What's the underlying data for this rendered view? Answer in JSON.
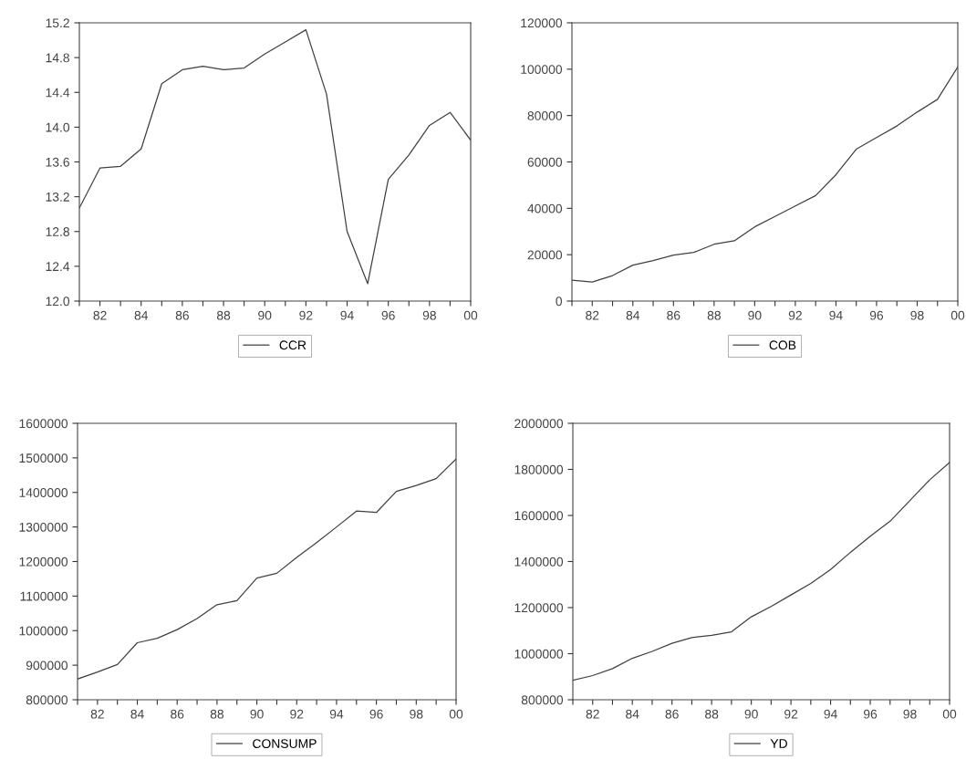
{
  "chart_data": [
    {
      "type": "line",
      "x": [
        1981,
        1982,
        1983,
        1984,
        1985,
        1986,
        1987,
        1988,
        1989,
        1990,
        1991,
        1992,
        1993,
        1994,
        1995,
        1996,
        1997,
        1998,
        1999,
        2000
      ],
      "series": [
        {
          "name": "CCR",
          "color": "#404040",
          "values": [
            13.07,
            13.53,
            13.55,
            13.75,
            14.5,
            14.66,
            14.7,
            14.66,
            14.68,
            14.84,
            14.98,
            15.12,
            14.38,
            12.8,
            12.2,
            13.4,
            13.68,
            14.02,
            14.17,
            13.85
          ]
        }
      ],
      "xlim": [
        1981,
        2000
      ],
      "xticks": [
        {
          "value": 1981,
          "label": null
        },
        {
          "value": 1982,
          "label": "82"
        },
        {
          "value": 1983,
          "label": null
        },
        {
          "value": 1984,
          "label": "84"
        },
        {
          "value": 1985,
          "label": null
        },
        {
          "value": 1986,
          "label": "86"
        },
        {
          "value": 1987,
          "label": null
        },
        {
          "value": 1988,
          "label": "88"
        },
        {
          "value": 1989,
          "label": null
        },
        {
          "value": 1990,
          "label": "90"
        },
        {
          "value": 1991,
          "label": null
        },
        {
          "value": 1992,
          "label": "92"
        },
        {
          "value": 1993,
          "label": null
        },
        {
          "value": 1994,
          "label": "94"
        },
        {
          "value": 1995,
          "label": null
        },
        {
          "value": 1996,
          "label": "96"
        },
        {
          "value": 1997,
          "label": null
        },
        {
          "value": 1998,
          "label": "98"
        },
        {
          "value": 1999,
          "label": null
        },
        {
          "value": 2000,
          "label": "00"
        }
      ],
      "ylim": [
        12.0,
        15.2
      ],
      "yticks": [
        {
          "value": 12,
          "label": "12.0"
        },
        {
          "value": 12.4,
          "label": "12.4"
        },
        {
          "value": 12.8,
          "label": "12.8"
        },
        {
          "value": 13.2,
          "label": "13.2"
        },
        {
          "value": 13.6,
          "label": "13.6"
        },
        {
          "value": 14,
          "label": "14.0"
        },
        {
          "value": 14.4,
          "label": "14.4"
        },
        {
          "value": 14.8,
          "label": "14.8"
        },
        {
          "value": 15.2,
          "label": "15.2"
        }
      ],
      "grid": false,
      "legend": "bottom"
    },
    {
      "type": "line",
      "x": [
        1981,
        1982,
        1983,
        1984,
        1985,
        1986,
        1987,
        1988,
        1989,
        1990,
        1991,
        1992,
        1993,
        1994,
        1995,
        1996,
        1997,
        1998,
        1999,
        2000
      ],
      "series": [
        {
          "name": "COB",
          "color": "#404040",
          "values": [
            9000,
            8200,
            11000,
            15500,
            17500,
            19800,
            21000,
            24500,
            26000,
            32000,
            36500,
            41000,
            45500,
            54500,
            65500,
            70500,
            75500,
            81500,
            87000,
            101000
          ]
        }
      ],
      "xlim": [
        1981,
        2000
      ],
      "xticks": [
        {
          "value": 1981,
          "label": null
        },
        {
          "value": 1982,
          "label": "82"
        },
        {
          "value": 1983,
          "label": null
        },
        {
          "value": 1984,
          "label": "84"
        },
        {
          "value": 1985,
          "label": null
        },
        {
          "value": 1986,
          "label": "86"
        },
        {
          "value": 1987,
          "label": null
        },
        {
          "value": 1988,
          "label": "88"
        },
        {
          "value": 1989,
          "label": null
        },
        {
          "value": 1990,
          "label": "90"
        },
        {
          "value": 1991,
          "label": null
        },
        {
          "value": 1992,
          "label": "92"
        },
        {
          "value": 1993,
          "label": null
        },
        {
          "value": 1994,
          "label": "94"
        },
        {
          "value": 1995,
          "label": null
        },
        {
          "value": 1996,
          "label": "96"
        },
        {
          "value": 1997,
          "label": null
        },
        {
          "value": 1998,
          "label": "98"
        },
        {
          "value": 1999,
          "label": null
        },
        {
          "value": 2000,
          "label": "00"
        }
      ],
      "ylim": [
        0,
        120000
      ],
      "yticks": [
        0,
        20000,
        40000,
        60000,
        80000,
        100000,
        120000
      ],
      "grid": false,
      "legend": "bottom"
    },
    {
      "type": "line",
      "x": [
        1981,
        1982,
        1983,
        1984,
        1985,
        1986,
        1987,
        1988,
        1989,
        1990,
        1991,
        1992,
        1993,
        1994,
        1995,
        1996,
        1997,
        1998,
        1999,
        2000
      ],
      "series": [
        {
          "name": "CONSUMP",
          "color": "#404040",
          "values": [
            860000,
            880000,
            902000,
            965000,
            978000,
            1003000,
            1035000,
            1075000,
            1087000,
            1152000,
            1166000,
            1212000,
            1255000,
            1300000,
            1346000,
            1342000,
            1403000,
            1420000,
            1440000,
            1497000
          ]
        }
      ],
      "xlim": [
        1981,
        2000
      ],
      "xticks": [
        {
          "value": 1981,
          "label": null
        },
        {
          "value": 1982,
          "label": "82"
        },
        {
          "value": 1983,
          "label": null
        },
        {
          "value": 1984,
          "label": "84"
        },
        {
          "value": 1985,
          "label": null
        },
        {
          "value": 1986,
          "label": "86"
        },
        {
          "value": 1987,
          "label": null
        },
        {
          "value": 1988,
          "label": "88"
        },
        {
          "value": 1989,
          "label": null
        },
        {
          "value": 1990,
          "label": "90"
        },
        {
          "value": 1991,
          "label": null
        },
        {
          "value": 1992,
          "label": "92"
        },
        {
          "value": 1993,
          "label": null
        },
        {
          "value": 1994,
          "label": "94"
        },
        {
          "value": 1995,
          "label": null
        },
        {
          "value": 1996,
          "label": "96"
        },
        {
          "value": 1997,
          "label": null
        },
        {
          "value": 1998,
          "label": "98"
        },
        {
          "value": 1999,
          "label": null
        },
        {
          "value": 2000,
          "label": "00"
        }
      ],
      "ylim": [
        800000,
        1600000
      ],
      "yticks": [
        800000,
        900000,
        1000000,
        1100000,
        1200000,
        1300000,
        1400000,
        1500000,
        1600000
      ],
      "grid": false,
      "legend": "bottom"
    },
    {
      "type": "line",
      "x": [
        1981,
        1982,
        1983,
        1984,
        1985,
        1986,
        1987,
        1988,
        1989,
        1990,
        1991,
        1992,
        1993,
        1994,
        1995,
        1996,
        1997,
        1998,
        1999,
        2000
      ],
      "series": [
        {
          "name": "YD",
          "color": "#404040",
          "values": [
            885000,
            905000,
            935000,
            980000,
            1010000,
            1045000,
            1070000,
            1080000,
            1095000,
            1160000,
            1205000,
            1255000,
            1305000,
            1365000,
            1440000,
            1510000,
            1575000,
            1665000,
            1755000,
            1830000
          ]
        }
      ],
      "xlim": [
        1981,
        2000
      ],
      "xticks": [
        {
          "value": 1981,
          "label": null
        },
        {
          "value": 1982,
          "label": "82"
        },
        {
          "value": 1983,
          "label": null
        },
        {
          "value": 1984,
          "label": "84"
        },
        {
          "value": 1985,
          "label": null
        },
        {
          "value": 1986,
          "label": "86"
        },
        {
          "value": 1987,
          "label": null
        },
        {
          "value": 1988,
          "label": "88"
        },
        {
          "value": 1989,
          "label": null
        },
        {
          "value": 1990,
          "label": "90"
        },
        {
          "value": 1991,
          "label": null
        },
        {
          "value": 1992,
          "label": "92"
        },
        {
          "value": 1993,
          "label": null
        },
        {
          "value": 1994,
          "label": "94"
        },
        {
          "value": 1995,
          "label": null
        },
        {
          "value": 1996,
          "label": "96"
        },
        {
          "value": 1997,
          "label": null
        },
        {
          "value": 1998,
          "label": "98"
        },
        {
          "value": 1999,
          "label": null
        },
        {
          "value": 2000,
          "label": "00"
        }
      ],
      "ylim": [
        800000,
        2000000
      ],
      "yticks": [
        800000,
        1000000,
        1200000,
        1400000,
        1600000,
        1800000,
        2000000
      ],
      "grid": false,
      "legend": "bottom"
    }
  ]
}
